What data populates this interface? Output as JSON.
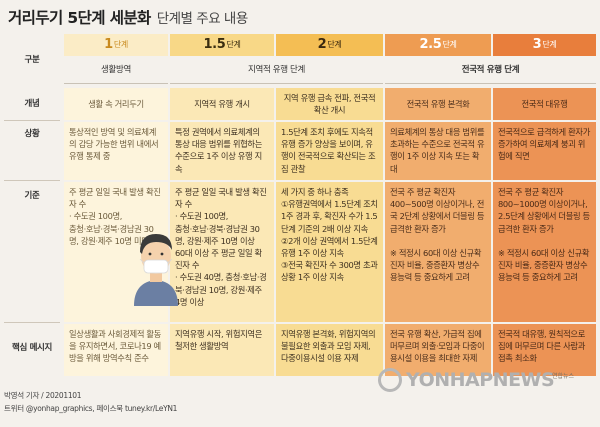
{
  "title": {
    "main": "거리두기 5단계 세분화",
    "sub": "단계별 주요 내용"
  },
  "row_labels": {
    "division": "구분",
    "concept": "개념",
    "situation": "상황",
    "criteria": "기준",
    "message": "핵심 메시지"
  },
  "stages": [
    {
      "num": "1",
      "unit": "단계"
    },
    {
      "num": "1.5",
      "unit": "단계"
    },
    {
      "num": "2",
      "unit": "단계"
    },
    {
      "num": "2.5",
      "unit": "단계"
    },
    {
      "num": "3",
      "unit": "단계"
    }
  ],
  "groups": {
    "g1": "생활방역",
    "g2": "지역적 유행 단계",
    "g3": "전국적 유행 단계"
  },
  "concepts": [
    "생활 속 거리두기",
    "지역적 유행 개시",
    "지역 유행 급속 전파, 전국적 확산 개시",
    "전국적 유행 본격화",
    "전국적 대유행"
  ],
  "situations": [
    "통상적인 방역 및 의료체계의 감당 가능한 범위 내에서 유행 통제 중",
    "특정 권역에서 의료체계의 통상 대응 범위를 위협하는 수준으로 1주 이상 유행 지속",
    "1.5단계 조치 후에도 지속적 유행 증가 양상을 보이며, 유행이 전국적으로 확산되는 조짐 관찰",
    "의료체계의 통상 대응 범위를 초과하는 수준으로 전국적 유행이 1주 이상 지속 또는 확대",
    "전국적으로 급격하게 환자가 증가하여 의료체계 붕괴 위험에 직면"
  ],
  "criteria": [
    "주 평균 일일 국내 발생 확진자 수\n· 수도권 100명,\n충청·호남·경북·경남권 30명, 강원·제주 10명 미만",
    "주 평균 일일 국내 발생 확진자 수\n· 수도권 100명,\n충청·호남·경북·경남권 30명, 강원·제주 10명 이상\n60대 이상 주 평균 일일 확진자 수\n· 수도권 40명, 충청·호남·경북·경남권 10명, 강원·제주 4명 이상",
    "세 가지 중 하나 충족\n①유행권역에서 1.5단계 조치 1주 경과 후, 확진자 수가 1.5단계 기준의 2배 이상 지속\n②2개 이상 권역에서 1.5단계 유행 1주 이상 지속\n③전국 확진자 수 300명 초과 상황 1주 이상 지속",
    "전국 주 평균 확진자 400~500명 이상이거나, 전국 2단계 상황에서 더블링 등 급격한 환자 증가\n\n※ 적정시 60대 이상 신규확진자 비율, 중증환자 병상수용능력 등 중요하게 고려",
    "전국 주 평균 확진자 800~1000명 이상이거나, 2.5단계 상황에서 더블링 등 급격한 환자 증가\n\n※ 적정시 60대 이상 신규확진자 비율, 중증환자 병상수용능력 등 중요하게 고려"
  ],
  "messages": [
    "일상생활과 사회경제적 활동을 유지하면서, 코로나19 예방을 위해 방역수칙 준수",
    "지역유행 시작, 위험지역은 철저한 생활방역",
    "지역유행 본격화, 위험지역의 불필요한 외출과 모임 자제, 다중이용시설 이용 자제",
    "전국 유행 확산, 가급적 집에 머무르며 외출·모임과 다중이용시설 이용을 최대한 자제",
    "전국적 대유행, 원칙적으로 집에 머무르며 다른 사람과 접촉 최소화"
  ],
  "footer": {
    "line1": "박영석 기자 / 20201101",
    "line2": "트위터 @yonhap_graphics, 페이스북 tuney.kr/LeYN1"
  },
  "logo": "YONHAPNEWS",
  "mini_logo": "연합뉴스"
}
